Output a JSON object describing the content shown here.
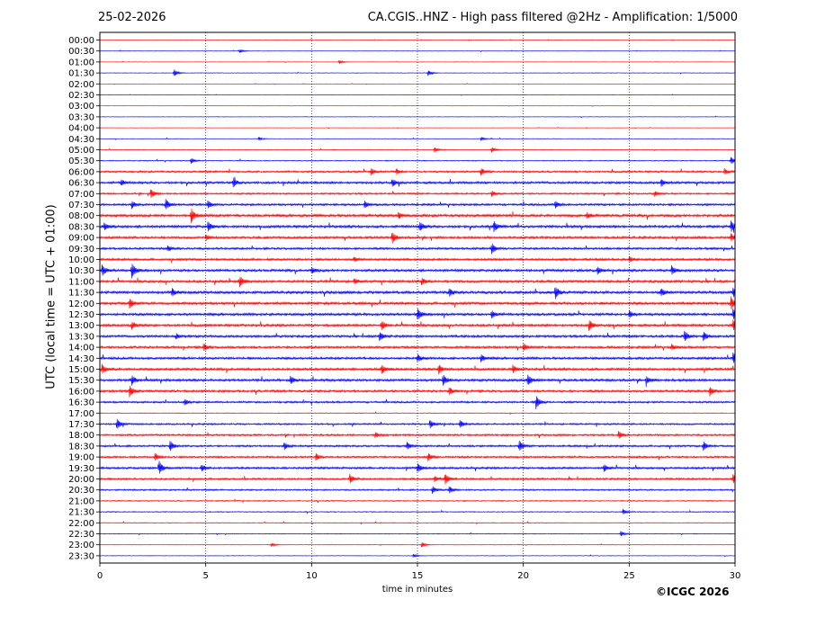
{
  "header": {
    "date": "25-02-2026",
    "title": "CA.CGIS..HNZ - High pass filtered @2Hz - Amplification: 1/5000"
  },
  "footer": {
    "copyright": "©ICGC 2026"
  },
  "chart_data": {
    "type": "line",
    "title": "CA.CGIS..HNZ - High pass filtered @2Hz - Amplification: 1/5000",
    "xlabel": "time in minutes",
    "ylabel": "UTC (local time = UTC + 01:00)",
    "xlim": [
      0,
      30
    ],
    "x_ticks": [
      0,
      5,
      10,
      15,
      20,
      25,
      30
    ],
    "x_grid": "dotted vertical lines at 5-minute intervals",
    "y_tick_labels": [
      "00:00",
      "00:30",
      "01:00",
      "01:30",
      "02:00",
      "02:30",
      "03:00",
      "03:30",
      "04:00",
      "04:30",
      "05:00",
      "05:30",
      "06:00",
      "06:30",
      "07:00",
      "07:30",
      "08:00",
      "08:30",
      "09:00",
      "09:30",
      "10:00",
      "10:30",
      "11:00",
      "11:30",
      "12:00",
      "12:30",
      "13:00",
      "13:30",
      "14:00",
      "14:30",
      "15:00",
      "15:30",
      "16:00",
      "16:30",
      "17:00",
      "17:30",
      "18:00",
      "18:30",
      "19:00",
      "19:30",
      "20:00",
      "20:30",
      "21:00",
      "21:30",
      "22:00",
      "22:30",
      "23:00",
      "23:30"
    ],
    "series_colors": [
      "#ff0000",
      "#0000ff"
    ],
    "trace_color_pattern": "alternating red/blue per 30-minute row",
    "noise_level": [
      0.25,
      0.25,
      0.25,
      0.3,
      0.2,
      0.2,
      0.2,
      0.25,
      0.2,
      0.3,
      0.4,
      0.5,
      1.0,
      1.2,
      0.9,
      1.1,
      1.4,
      1.3,
      1.2,
      1.1,
      1.2,
      1.3,
      1.3,
      1.4,
      1.4,
      1.3,
      1.3,
      1.2,
      1.2,
      1.2,
      1.3,
      1.3,
      1.2,
      1.0,
      0.4,
      0.9,
      1.0,
      1.0,
      1.0,
      1.1,
      1.0,
      0.8,
      0.6,
      0.5,
      0.4,
      0.4,
      0.3,
      0.3
    ],
    "events": [
      {
        "row": 1,
        "t": 6.6,
        "a": 2
      },
      {
        "row": 2,
        "t": 11.3,
        "a": 2
      },
      {
        "row": 3,
        "t": 3.5,
        "a": 4
      },
      {
        "row": 3,
        "t": 15.5,
        "a": 3
      },
      {
        "row": 9,
        "t": 7.5,
        "a": 2
      },
      {
        "row": 9,
        "t": 18,
        "a": 2
      },
      {
        "row": 10,
        "t": 15.8,
        "a": 3
      },
      {
        "row": 10,
        "t": 18.5,
        "a": 3
      },
      {
        "row": 11,
        "t": 4.3,
        "a": 3
      },
      {
        "row": 11,
        "t": 29.8,
        "a": 4
      },
      {
        "row": 12,
        "t": 12.8,
        "a": 4
      },
      {
        "row": 12,
        "t": 14,
        "a": 3
      },
      {
        "row": 12,
        "t": 18,
        "a": 4
      },
      {
        "row": 12,
        "t": 29.5,
        "a": 3
      },
      {
        "row": 13,
        "t": 1,
        "a": 3
      },
      {
        "row": 13,
        "t": 6.3,
        "a": 5
      },
      {
        "row": 13,
        "t": 13.8,
        "a": 4
      },
      {
        "row": 13,
        "t": 26.5,
        "a": 4
      },
      {
        "row": 14,
        "t": 2.4,
        "a": 5
      },
      {
        "row": 14,
        "t": 18.5,
        "a": 3
      },
      {
        "row": 14,
        "t": 26.2,
        "a": 3
      },
      {
        "row": 15,
        "t": 1.5,
        "a": 4
      },
      {
        "row": 15,
        "t": 3.1,
        "a": 6
      },
      {
        "row": 15,
        "t": 5.1,
        "a": 4
      },
      {
        "row": 15,
        "t": 12.5,
        "a": 4
      },
      {
        "row": 15,
        "t": 21.5,
        "a": 4
      },
      {
        "row": 16,
        "t": 4.3,
        "a": 8
      },
      {
        "row": 16,
        "t": 14.1,
        "a": 3
      },
      {
        "row": 16,
        "t": 23,
        "a": 3
      },
      {
        "row": 17,
        "t": 0.2,
        "a": 4
      },
      {
        "row": 17,
        "t": 5.1,
        "a": 5
      },
      {
        "row": 17,
        "t": 15.1,
        "a": 5
      },
      {
        "row": 17,
        "t": 18.6,
        "a": 6
      },
      {
        "row": 17,
        "t": 29.8,
        "a": 6
      },
      {
        "row": 18,
        "t": 5,
        "a": 3
      },
      {
        "row": 18,
        "t": 13.8,
        "a": 6
      },
      {
        "row": 18,
        "t": 29.8,
        "a": 4
      },
      {
        "row": 19,
        "t": 18.5,
        "a": 6
      },
      {
        "row": 19,
        "t": 3.2,
        "a": 3
      },
      {
        "row": 20,
        "t": 12,
        "a": 2
      },
      {
        "row": 20,
        "t": 25,
        "a": 3
      },
      {
        "row": 21,
        "t": 0.1,
        "a": 6
      },
      {
        "row": 21,
        "t": 1.5,
        "a": 8
      },
      {
        "row": 21,
        "t": 10,
        "a": 3
      },
      {
        "row": 21,
        "t": 23.5,
        "a": 4
      },
      {
        "row": 21,
        "t": 27,
        "a": 5
      },
      {
        "row": 22,
        "t": 6.6,
        "a": 6
      },
      {
        "row": 22,
        "t": 15.2,
        "a": 4
      },
      {
        "row": 22,
        "t": 12,
        "a": 3
      },
      {
        "row": 23,
        "t": 3.4,
        "a": 4
      },
      {
        "row": 23,
        "t": 16.5,
        "a": 4
      },
      {
        "row": 23,
        "t": 21.5,
        "a": 7
      },
      {
        "row": 23,
        "t": 26.5,
        "a": 4
      },
      {
        "row": 23,
        "t": 29.9,
        "a": 5
      },
      {
        "row": 24,
        "t": 1.4,
        "a": 5
      },
      {
        "row": 24,
        "t": 29.8,
        "a": 7
      },
      {
        "row": 25,
        "t": 15,
        "a": 6
      },
      {
        "row": 25,
        "t": 18.5,
        "a": 4
      },
      {
        "row": 25,
        "t": 25,
        "a": 4
      },
      {
        "row": 25,
        "t": 29.9,
        "a": 6
      },
      {
        "row": 26,
        "t": 1.5,
        "a": 4
      },
      {
        "row": 26,
        "t": 13.3,
        "a": 5
      },
      {
        "row": 26,
        "t": 23.1,
        "a": 6
      },
      {
        "row": 26,
        "t": 29.9,
        "a": 6
      },
      {
        "row": 27,
        "t": 3.6,
        "a": 3
      },
      {
        "row": 27,
        "t": 13.2,
        "a": 5
      },
      {
        "row": 27,
        "t": 27.6,
        "a": 6
      },
      {
        "row": 27,
        "t": 28.5,
        "a": 5
      },
      {
        "row": 28,
        "t": 4.9,
        "a": 4
      },
      {
        "row": 28,
        "t": 20,
        "a": 4
      },
      {
        "row": 28,
        "t": 27,
        "a": 3
      },
      {
        "row": 29,
        "t": 15,
        "a": 4
      },
      {
        "row": 29,
        "t": 18,
        "a": 4
      },
      {
        "row": 29,
        "t": 29.9,
        "a": 6
      },
      {
        "row": 30,
        "t": 0.1,
        "a": 5
      },
      {
        "row": 30,
        "t": 13.3,
        "a": 5
      },
      {
        "row": 30,
        "t": 16,
        "a": 5
      },
      {
        "row": 30,
        "t": 19.5,
        "a": 4
      },
      {
        "row": 31,
        "t": 1.5,
        "a": 5
      },
      {
        "row": 31,
        "t": 9,
        "a": 4
      },
      {
        "row": 31,
        "t": 16.2,
        "a": 6
      },
      {
        "row": 31,
        "t": 20.2,
        "a": 6
      },
      {
        "row": 31,
        "t": 25.8,
        "a": 4
      },
      {
        "row": 32,
        "t": 1.4,
        "a": 6
      },
      {
        "row": 32,
        "t": 16.5,
        "a": 4
      },
      {
        "row": 32,
        "t": 28.8,
        "a": 5
      },
      {
        "row": 33,
        "t": 20.6,
        "a": 7
      },
      {
        "row": 33,
        "t": 4,
        "a": 3
      },
      {
        "row": 35,
        "t": 0.8,
        "a": 6
      },
      {
        "row": 35,
        "t": 15.6,
        "a": 4
      },
      {
        "row": 35,
        "t": 17,
        "a": 4
      },
      {
        "row": 36,
        "t": 13,
        "a": 3
      },
      {
        "row": 36,
        "t": 24.5,
        "a": 4
      },
      {
        "row": 37,
        "t": 3.3,
        "a": 6
      },
      {
        "row": 37,
        "t": 8.7,
        "a": 4
      },
      {
        "row": 37,
        "t": 14.5,
        "a": 4
      },
      {
        "row": 37,
        "t": 19.8,
        "a": 6
      },
      {
        "row": 37,
        "t": 28.5,
        "a": 5
      },
      {
        "row": 38,
        "t": 2.6,
        "a": 4
      },
      {
        "row": 38,
        "t": 10.2,
        "a": 4
      },
      {
        "row": 38,
        "t": 15.5,
        "a": 4
      },
      {
        "row": 39,
        "t": 2.8,
        "a": 7
      },
      {
        "row": 39,
        "t": 4.8,
        "a": 4
      },
      {
        "row": 39,
        "t": 15,
        "a": 5
      },
      {
        "row": 39,
        "t": 23.8,
        "a": 4
      },
      {
        "row": 40,
        "t": 11.8,
        "a": 5
      },
      {
        "row": 40,
        "t": 16.3,
        "a": 6
      },
      {
        "row": 40,
        "t": 15.8,
        "a": 3
      },
      {
        "row": 40,
        "t": 29.9,
        "a": 5
      },
      {
        "row": 41,
        "t": 15.7,
        "a": 4
      },
      {
        "row": 41,
        "t": 16.5,
        "a": 4
      },
      {
        "row": 43,
        "t": 24.7,
        "a": 3
      },
      {
        "row": 45,
        "t": 24.6,
        "a": 3
      },
      {
        "row": 46,
        "t": 8.1,
        "a": 2
      },
      {
        "row": 46,
        "t": 15.2,
        "a": 3
      },
      {
        "row": 47,
        "t": 14.8,
        "a": 2
      }
    ]
  }
}
